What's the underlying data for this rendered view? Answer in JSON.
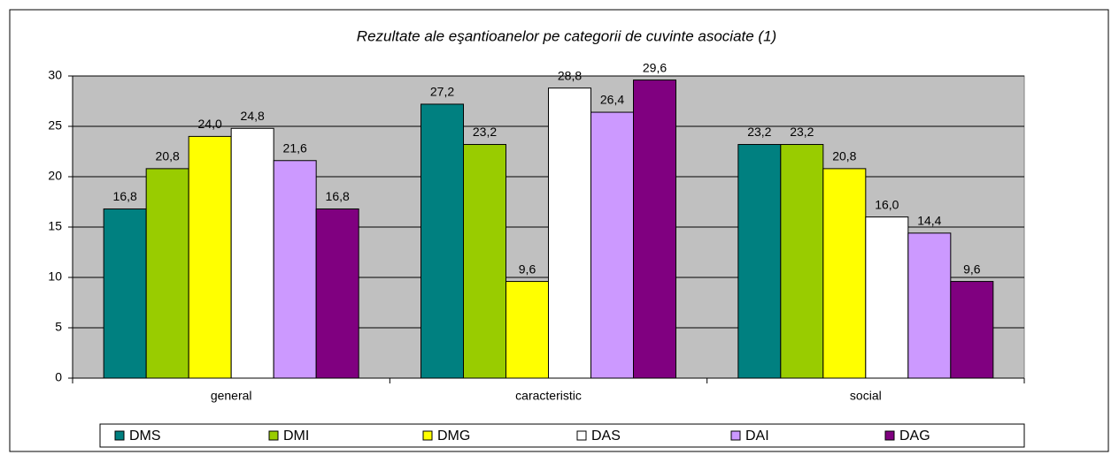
{
  "chart_data": {
    "type": "bar",
    "title": "Rezultate ale eşantioanelor pe categorii de cuvinte asociate (1)",
    "categories": [
      "general",
      "caracteristic",
      "social"
    ],
    "series": [
      {
        "name": "DMS",
        "color": "#008080",
        "values": [
          16.8,
          27.2,
          23.2
        ],
        "value_labels": [
          "16,8",
          "27,2",
          "23,2"
        ]
      },
      {
        "name": "DMI",
        "color": "#99cc00",
        "values": [
          20.8,
          23.2,
          23.2
        ],
        "value_labels": [
          "20,8",
          "23,2",
          "23,2"
        ]
      },
      {
        "name": "DMG",
        "color": "#ffff00",
        "values": [
          24.0,
          9.6,
          20.8
        ],
        "value_labels": [
          "24,0",
          "9,6",
          "20,8"
        ]
      },
      {
        "name": "DAS",
        "color": "#ffffff",
        "values": [
          24.8,
          28.8,
          16.0
        ],
        "value_labels": [
          "24,8",
          "28,8",
          "16,0"
        ]
      },
      {
        "name": "DAI",
        "color": "#cc99ff",
        "values": [
          21.6,
          26.4,
          14.4
        ],
        "value_labels": [
          "21,6",
          "26,4",
          "14,4"
        ]
      },
      {
        "name": "DAG",
        "color": "#800080",
        "values": [
          16.8,
          29.6,
          9.6
        ],
        "value_labels": [
          "16,8",
          "29,6",
          "9,6"
        ]
      }
    ],
    "ylim": [
      0,
      30
    ],
    "yticks": [
      0,
      5,
      10,
      15,
      20,
      25,
      30
    ],
    "grid": true,
    "legend": "bottom"
  }
}
